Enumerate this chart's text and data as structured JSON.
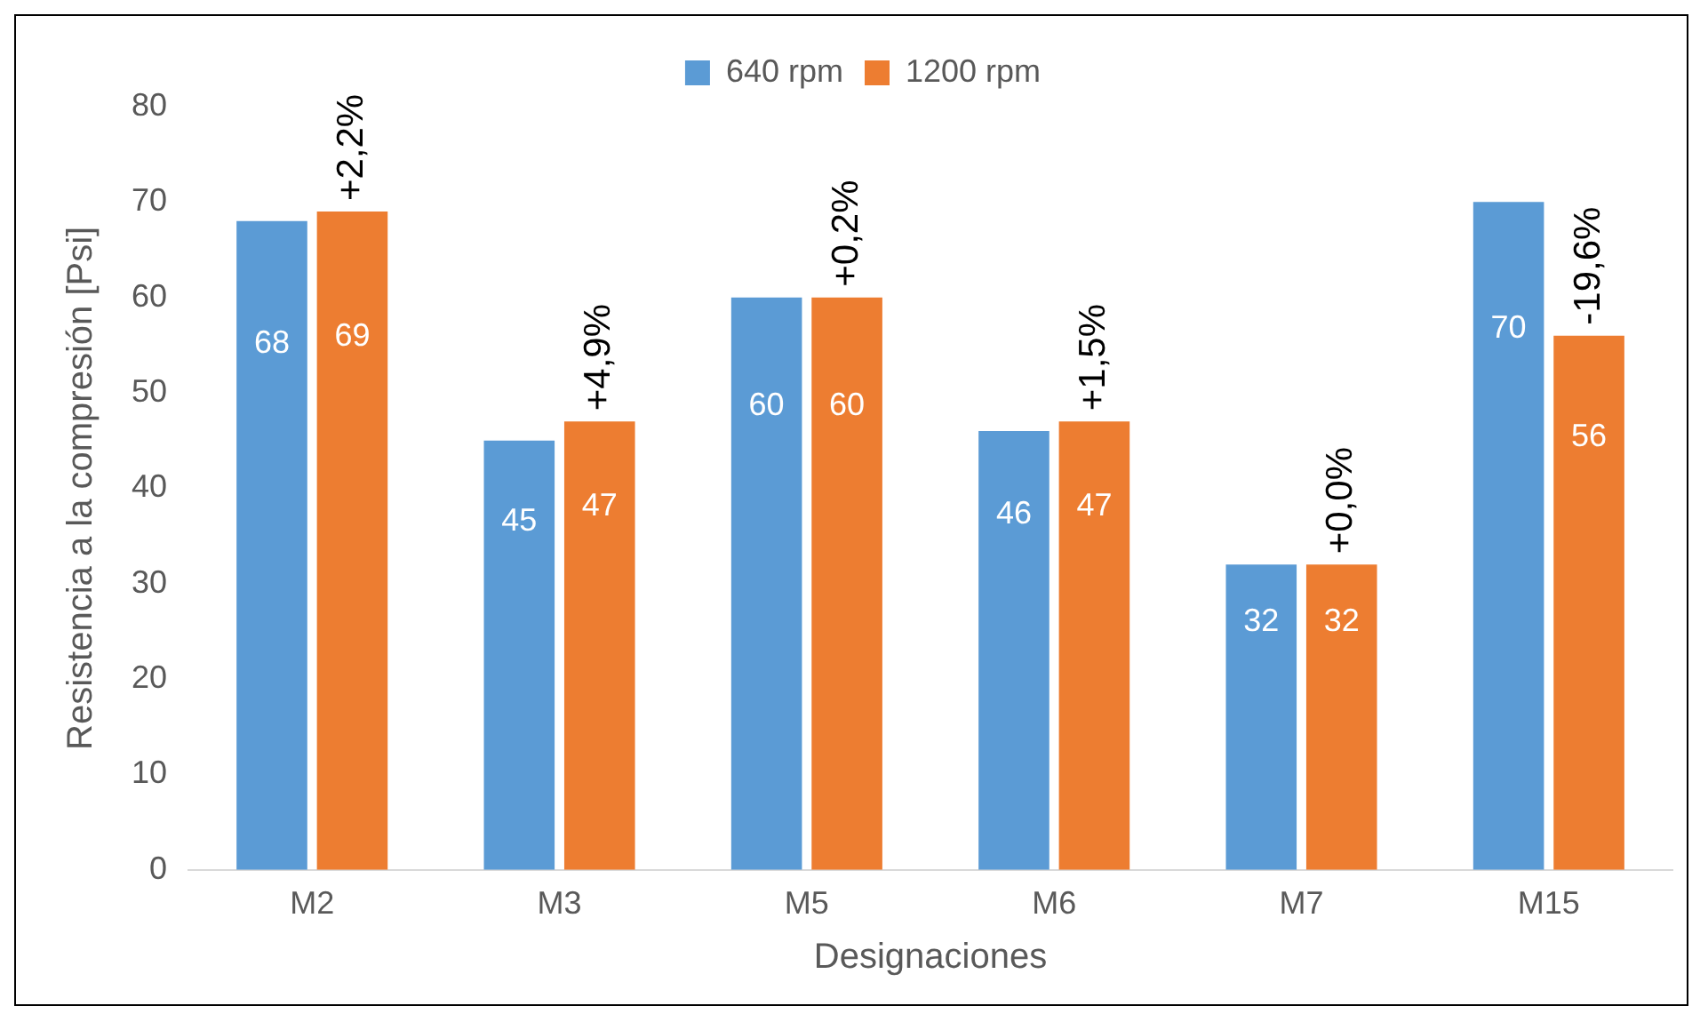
{
  "chart_data": {
    "type": "bar",
    "xlabel": "Designaciones",
    "ylabel": "Resistencia a la compresión [Psi]",
    "categories": [
      "M2",
      "M3",
      "M5",
      "M6",
      "M7",
      "M15"
    ],
    "series": [
      {
        "name": "640 rpm",
        "color": "#5b9bd5",
        "values": [
          68,
          45,
          60,
          46,
          32,
          70
        ]
      },
      {
        "name": "1200 rpm",
        "color": "#ed7d31",
        "values": [
          69,
          47,
          60,
          47,
          32,
          56
        ]
      }
    ],
    "ylim": [
      0,
      80
    ],
    "yticks": [
      0,
      10,
      20,
      30,
      40,
      50,
      60,
      70,
      80
    ],
    "grid": false,
    "legend": "top",
    "data_labels": true,
    "annotations": [
      {
        "text": "+2,2%",
        "x": "M2",
        "y": 69
      },
      {
        "text": "+4,9%",
        "x": "M3",
        "y": 47
      },
      {
        "text": "+0,2%",
        "x": "M5",
        "y": 60
      },
      {
        "text": "+1,5%",
        "x": "M6",
        "y": 47
      },
      {
        "text": "+0,0%",
        "x": "M7",
        "y": 32
      },
      {
        "text": "-19,6%",
        "x": "M15",
        "y": 56
      }
    ]
  }
}
